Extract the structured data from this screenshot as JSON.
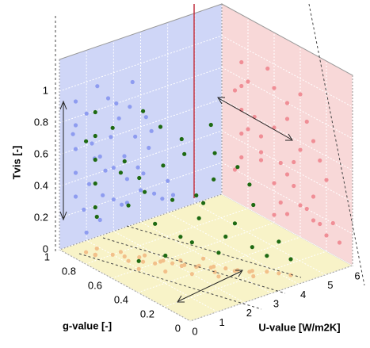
{
  "chart_data": {
    "type": "scatter3d",
    "xlabel": "U-value [W/m2K]",
    "ylabel": "g-value [-]",
    "zlabel": "Tvis [-]",
    "xlim": [
      0,
      6
    ],
    "xticks": [
      0,
      1,
      2,
      3,
      4,
      5,
      6
    ],
    "ylim": [
      0,
      1
    ],
    "yticks": [
      0,
      0.2,
      0.4,
      0.6,
      0.8,
      1
    ],
    "zlim": [
      0,
      1.2
    ],
    "zticks": [
      0,
      0.2,
      0.4,
      0.6,
      0.8,
      1
    ],
    "grid": true,
    "series": [
      {
        "color": "#1e6a12",
        "x": [
          0.5,
          0.6,
          0.6,
          0.6,
          0.6,
          0.6,
          1.0,
          1.2,
          1.5,
          1.8,
          2.0,
          2.2,
          2.5,
          2.8,
          3.0,
          3.2,
          3.5,
          1.1,
          1.4,
          1.6,
          2.1,
          2.4,
          2.7,
          3.1,
          3.4,
          3.8,
          4.0,
          1.3,
          1.9,
          2.3,
          2.6,
          0.9,
          1.7,
          2.9,
          3.3,
          4.2,
          1.0,
          1.5,
          2.0,
          2.5
        ],
        "y": [
          0.9,
          0.85,
          0.85,
          0.85,
          0.85,
          0.85,
          0.8,
          0.75,
          0.7,
          0.6,
          0.55,
          0.5,
          0.45,
          0.4,
          0.35,
          0.3,
          0.25,
          0.7,
          0.65,
          0.6,
          0.5,
          0.45,
          0.4,
          0.3,
          0.25,
          0.2,
          0.15,
          0.8,
          0.6,
          0.55,
          0.35,
          0.9,
          0.7,
          0.5,
          0.2,
          0.1,
          0.6,
          0.5,
          0.4,
          0.3
        ],
        "z": [
          0.7,
          0.3,
          0.45,
          0.6,
          0.75,
          0.9,
          0.8,
          0.6,
          0.5,
          0.85,
          0.4,
          0.7,
          0.3,
          0.55,
          0.2,
          0.65,
          0.15,
          0.35,
          0.95,
          0.25,
          0.8,
          0.45,
          0.9,
          0.3,
          0.55,
          0.1,
          0.2,
          0.5,
          0.6,
          0.15,
          0.75,
          0.2,
          0.4,
          0.35,
          0.45,
          0.1,
          0.05,
          0.1,
          0.2,
          0.15
        ]
      }
    ],
    "projection_colors": {
      "xz": "#8e9cf0",
      "yz": "#f08e96",
      "xy": "#f2c08a"
    },
    "wall_colors": {
      "xz": "#cfd6f7",
      "yz": "#f8d8d8",
      "xy": "#f8f3c8"
    }
  }
}
